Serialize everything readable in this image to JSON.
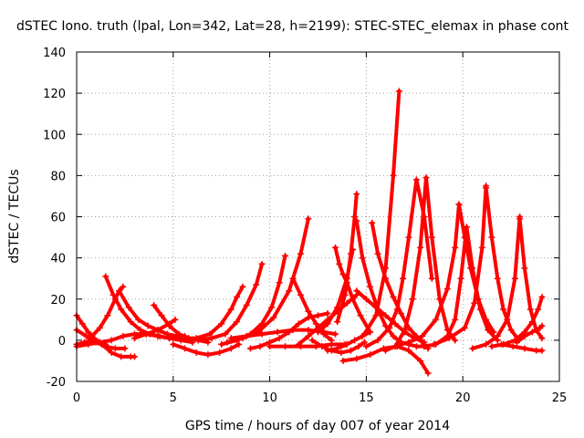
{
  "chart_data": {
    "type": "scatter",
    "title": "dSTEC Iono. truth (lpal, Lon=342, Lat=28, h=2199): STEC-STEC_elemax in phase cont",
    "xlabel": "GPS time / hours of day 007 of year 2014",
    "ylabel": "dSTEC  / TECUs",
    "xlim": [
      0,
      25
    ],
    "ylim": [
      -20,
      140
    ],
    "xticks": [
      0,
      5,
      10,
      15,
      20,
      25
    ],
    "yticks": [
      -20,
      0,
      20,
      40,
      60,
      80,
      100,
      120,
      140
    ],
    "grid": true,
    "marker": "+",
    "color": "#ff0000",
    "series": [
      {
        "x": [
          0.0,
          0.3,
          0.6,
          0.9,
          1.2,
          1.5
        ],
        "y": [
          12,
          8,
          4,
          1,
          -1,
          -2
        ]
      },
      {
        "x": [
          0.0,
          0.4,
          0.8,
          1.3,
          1.8,
          2.3,
          2.8,
          3.0
        ],
        "y": [
          -2,
          -1,
          0,
          -2,
          -6,
          -8,
          -8,
          -8
        ]
      },
      {
        "x": [
          0.0,
          0.5,
          1.0,
          1.5,
          2.0,
          2.5
        ],
        "y": [
          5,
          2,
          -1,
          -3,
          -4,
          -4
        ]
      },
      {
        "x": [
          0.0,
          0.6,
          1.2,
          1.8,
          2.4,
          3.0,
          3.6,
          4.2,
          4.8,
          5.4,
          6.0
        ],
        "y": [
          -3,
          -2,
          -1,
          0,
          2,
          3,
          3,
          2,
          1,
          0,
          -1
        ]
      },
      {
        "x": [
          1.5,
          1.9,
          2.3,
          2.8,
          3.3,
          3.8,
          4.3,
          4.8,
          5.2
        ],
        "y": [
          31,
          22,
          15,
          9,
          5,
          3,
          2,
          1,
          1
        ]
      },
      {
        "x": [
          0.8,
          1.2,
          1.6,
          2.0,
          2.2,
          2.4
        ],
        "y": [
          2,
          6,
          12,
          20,
          24,
          26
        ]
      },
      {
        "x": [
          2.2,
          2.7,
          3.2,
          3.7,
          4.2,
          4.7,
          5.2,
          5.6
        ],
        "y": [
          24,
          16,
          10,
          7,
          5,
          3,
          2,
          2
        ]
      },
      {
        "x": [
          4.0,
          4.4,
          4.8,
          5.3,
          5.8,
          6.3,
          6.8
        ],
        "y": [
          17,
          12,
          7,
          3,
          1,
          0,
          -1
        ]
      },
      {
        "x": [
          3.0,
          3.6,
          4.2,
          4.8,
          5.1
        ],
        "y": [
          1,
          3,
          5,
          8,
          10
        ]
      },
      {
        "x": [
          5.0,
          5.6,
          6.2,
          6.8,
          7.4,
          8.0,
          8.4
        ],
        "y": [
          -2,
          -4,
          -6,
          -7,
          -6,
          -4,
          -2
        ]
      },
      {
        "x": [
          5.5,
          6.2,
          6.9,
          7.5,
          8.0,
          8.3,
          8.6
        ],
        "y": [
          1,
          1,
          3,
          8,
          15,
          21,
          26
        ]
      },
      {
        "x": [
          6.3,
          7.0,
          7.7,
          8.3,
          8.8,
          9.3,
          9.6
        ],
        "y": [
          0,
          1,
          3,
          9,
          17,
          27,
          37
        ]
      },
      {
        "x": [
          7.5,
          8.3,
          9.0,
          9.6,
          10.1,
          10.5,
          10.8
        ],
        "y": [
          -2,
          0,
          3,
          8,
          16,
          28,
          41
        ]
      },
      {
        "x": [
          7.8,
          8.6,
          9.4,
          10.2,
          11.0,
          11.6,
          12.0
        ],
        "y": [
          -1,
          1,
          4,
          11,
          24,
          42,
          59
        ]
      },
      {
        "x": [
          8.0,
          8.8,
          9.6,
          10.4,
          11.2,
          12.0,
          12.8,
          13.4
        ],
        "y": [
          1,
          2,
          3,
          4,
          5,
          5,
          4,
          3
        ]
      },
      {
        "x": [
          9.0,
          9.5,
          10.0,
          10.5,
          11.0,
          11.5,
          12.0,
          12.5,
          13.0
        ],
        "y": [
          -4,
          -3,
          -1,
          1,
          4,
          8,
          11,
          12,
          13
        ]
      },
      {
        "x": [
          10.0,
          10.8,
          11.6,
          12.4,
          13.2,
          13.9
        ],
        "y": [
          -3,
          -3,
          -3,
          -3,
          -2,
          -2
        ]
      },
      {
        "x": [
          11.2,
          11.6,
          12.0,
          12.4,
          12.8,
          13.2
        ],
        "y": [
          30,
          22,
          14,
          8,
          3,
          0
        ]
      },
      {
        "x": [
          11.5,
          12.0,
          12.5,
          13.0,
          13.5,
          14.0,
          14.5
        ],
        "y": [
          -2,
          2,
          6,
          10,
          14,
          18,
          22
        ]
      },
      {
        "x": [
          12.2,
          12.7,
          13.2,
          13.7,
          14.2,
          14.6,
          14.9
        ],
        "y": [
          0,
          -3,
          -5,
          -6,
          -5,
          -3,
          -1
        ]
      },
      {
        "x": [
          12.5,
          13.0,
          13.5,
          14.0,
          14.3
        ],
        "y": [
          4,
          8,
          16,
          30,
          44
        ]
      },
      {
        "x": [
          13.4,
          13.6,
          13.8,
          14.0,
          14.3,
          14.7,
          15.2
        ],
        "y": [
          45,
          37,
          32,
          28,
          20,
          12,
          4
        ]
      },
      {
        "x": [
          13.0,
          13.5,
          14.0,
          14.4,
          14.8,
          15.2
        ],
        "y": [
          -5,
          -4,
          -2,
          0,
          2,
          4
        ]
      },
      {
        "x": [
          13.5,
          13.9,
          14.2,
          14.4,
          14.5
        ],
        "y": [
          9,
          22,
          42,
          60,
          71
        ]
      },
      {
        "x": [
          14.5,
          14.8,
          15.2,
          15.6,
          16.0,
          16.4,
          16.8,
          17.2,
          17.6,
          18.0
        ],
        "y": [
          58,
          40,
          26,
          15,
          7,
          2,
          -1,
          -2,
          -3,
          -3
        ]
      },
      {
        "x": [
          13.8,
          14.5,
          15.2,
          15.9,
          16.6,
          17.2,
          17.8,
          18.2
        ],
        "y": [
          -10,
          -9,
          -7,
          -4,
          -3,
          -5,
          -10,
          -16
        ]
      },
      {
        "x": [
          14.5,
          15.0,
          15.5,
          16.0,
          16.5,
          17.0,
          17.5,
          18.0
        ],
        "y": [
          24,
          20,
          16,
          12,
          8,
          4,
          1,
          -1
        ]
      },
      {
        "x": [
          15.3,
          15.6,
          16.0,
          16.4,
          16.8,
          17.2,
          17.6,
          18.0,
          18.2
        ],
        "y": [
          57,
          42,
          30,
          21,
          13,
          6,
          2,
          -2,
          -4
        ]
      },
      {
        "x": [
          14.9,
          15.5,
          16.0,
          16.4,
          16.7
        ],
        "y": [
          3,
          12,
          35,
          80,
          121
        ]
      },
      {
        "x": [
          15.0,
          15.6,
          16.2,
          16.6,
          16.9,
          17.2,
          17.6,
          18.0,
          18.4
        ],
        "y": [
          -3,
          0,
          6,
          15,
          30,
          50,
          78,
          60,
          30
        ]
      },
      {
        "x": [
          16.0,
          16.5,
          17.0,
          17.4,
          17.8,
          18.1,
          18.4,
          18.8,
          19.2,
          19.6
        ],
        "y": [
          -5,
          -3,
          5,
          20,
          45,
          79,
          50,
          20,
          5,
          0
        ]
      },
      {
        "x": [
          16.5,
          17.2,
          17.9,
          18.6,
          19.2,
          19.6,
          19.8
        ],
        "y": [
          -3,
          -1,
          2,
          10,
          25,
          45,
          66
        ]
      },
      {
        "x": [
          18.0,
          18.6,
          19.2,
          19.6,
          19.9,
          20.2,
          20.5,
          20.9,
          21.3,
          21.8
        ],
        "y": [
          -3,
          -2,
          2,
          10,
          30,
          55,
          35,
          15,
          5,
          0
        ]
      },
      {
        "x": [
          19.8,
          20.1,
          20.4,
          20.8,
          21.2,
          21.6
        ],
        "y": [
          66,
          50,
          35,
          20,
          10,
          4
        ]
      },
      {
        "x": [
          18.5,
          19.3,
          20.1,
          20.6,
          21.0,
          21.2
        ],
        "y": [
          -2,
          1,
          6,
          18,
          45,
          75
        ]
      },
      {
        "x": [
          21.2,
          21.5,
          21.8,
          22.1,
          22.5,
          22.9
        ],
        "y": [
          74,
          50,
          30,
          15,
          5,
          0
        ]
      },
      {
        "x": [
          20.5,
          21.2,
          21.8,
          22.3,
          22.7,
          22.95
        ],
        "y": [
          -4,
          -2,
          2,
          10,
          30,
          60
        ]
      },
      {
        "x": [
          22.95,
          23.2,
          23.5,
          23.8,
          24.1
        ],
        "y": [
          59,
          35,
          15,
          5,
          1
        ]
      },
      {
        "x": [
          21.5,
          22.1,
          22.7,
          23.2,
          23.6,
          23.9,
          24.1
        ],
        "y": [
          -3,
          -2,
          0,
          4,
          9,
          15,
          21
        ]
      },
      {
        "x": [
          22.8,
          23.2,
          23.6,
          24.0,
          24.1
        ],
        "y": [
          -1,
          2,
          4,
          6,
          7
        ]
      },
      {
        "x": [
          22.0,
          22.6,
          23.2,
          23.8,
          24.1
        ],
        "y": [
          -2,
          -3,
          -4,
          -5,
          -5
        ]
      }
    ]
  }
}
